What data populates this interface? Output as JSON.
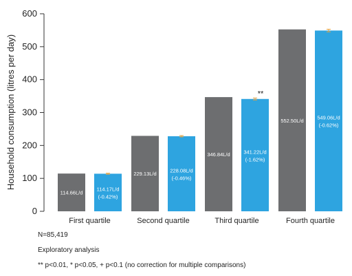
{
  "chart_data": {
    "type": "bar",
    "ylabel": "Household consumption (litres per day)",
    "ylim": [
      0,
      600
    ],
    "yticks": [
      0,
      100,
      200,
      300,
      400,
      500,
      600
    ],
    "categories": [
      "First quartile",
      "Second quartile",
      "Third quartile",
      "Fourth quartile"
    ],
    "series": [
      {
        "color": "#6d6e70",
        "values": [
          114.66,
          229.13,
          346.84,
          552.5
        ],
        "labels": [
          "114.66L/d",
          "229.13L/d",
          "346.84L/d",
          "552.50L/d"
        ]
      },
      {
        "color": "#2ea4e0",
        "values": [
          114.17,
          228.08,
          341.22,
          549.06
        ],
        "labels": [
          "114.17L/d\n(-0.42%)",
          "228.08L/d\n(-0.46%)",
          "341.22L/d\n(-1.62%)",
          "549.06L/d\n(-0.62%)"
        ],
        "errors": [
          1.5,
          2,
          3,
          4
        ],
        "error_color": "#e8a33d",
        "significance": [
          "",
          "",
          "**",
          ""
        ]
      }
    ],
    "grid": false,
    "legend": "none"
  },
  "notes": {
    "n": "N=85,419",
    "analysis": "Exploratory analysis",
    "significance_key": "** p<0.01, * p<0.05, + p<0.1 (no correction for multiple comparisons)"
  }
}
